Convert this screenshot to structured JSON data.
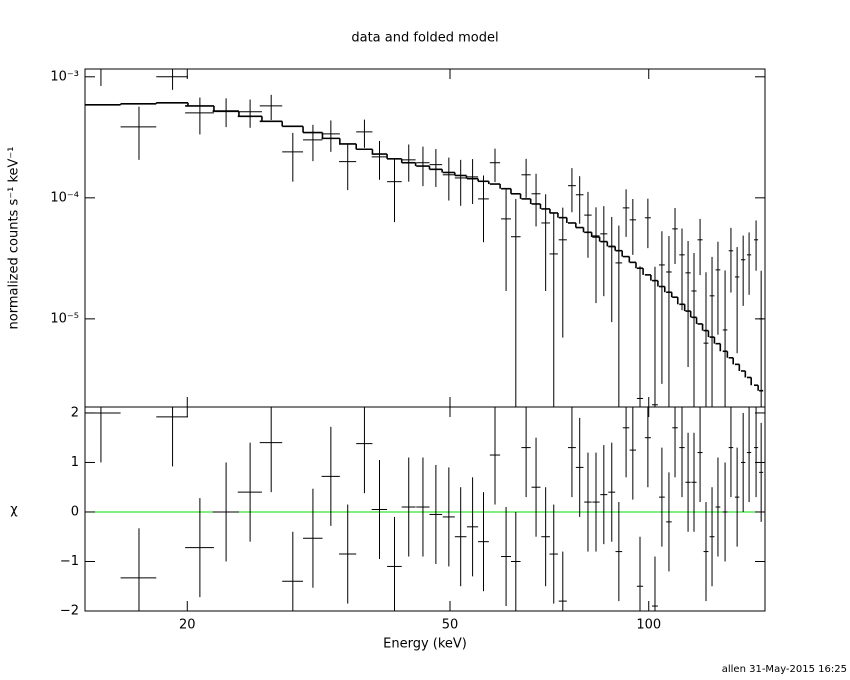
{
  "chart_data": {
    "type": "errorbar",
    "title": "data and folded model",
    "xlabel": "Energy (keV)",
    "footer": "allen 31-May-2015 16:25",
    "xlog": true,
    "xlim": [
      14,
      150
    ],
    "xticks": [
      20,
      50,
      100
    ],
    "x": [
      14.8,
      16.9,
      19.0,
      20.9,
      22.9,
      24.9,
      26.8,
      28.9,
      31.0,
      33.0,
      35.0,
      37.1,
      39.1,
      41.2,
      43.3,
      45.5,
      47.6,
      49.8,
      51.9,
      54.1,
      56.2,
      58.5,
      60.8,
      62.9,
      65.2,
      67.5,
      69.8,
      71.8,
      74.1,
      76.5,
      78.6,
      80.9,
      83.2,
      85.5,
      87.9,
      90.1,
      92.4,
      94.6,
      97.0,
      99.7,
      102.2,
      104.7,
      107.3,
      109.6,
      112.3,
      114.7,
      117.1,
      119.6,
      122.1,
      124.7,
      127.3,
      130.5,
      133.2,
      136.1,
      139.0,
      141.9,
      145.4,
      148.0
    ],
    "xerr": 1.05,
    "data_color": "#000000",
    "model_color": "#000000",
    "top": {
      "ylabel": "normalized counts s⁻¹ keV⁻¹",
      "ylog": true,
      "ylim": [
        1.87e-06,
        0.00116
      ],
      "yticks": [
        {
          "value": 0.001,
          "label": "10⁻³"
        },
        {
          "value": 0.0001,
          "label": "10⁻⁴"
        },
        {
          "value": 1e-05,
          "label": "10⁻⁵"
        }
      ],
      "values": [
        0.00116,
        0.000386,
        0.001,
        0.000504,
        0.000524,
        0.000514,
        0.000575,
        0.00024,
        0.000301,
        0.000338,
        0.000199,
        0.000351,
        0.000218,
        0.000136,
        0.000206,
        0.000195,
        0.000188,
        0.000155,
        0.000146,
        0.000149,
        9.8e-05,
        0.000195,
        6.7e-05,
        4.77e-05,
        0.000155,
        0.000108,
        6.2e-05,
        3.44e-05,
        4.5e-05,
        0.000126,
        0.000106,
        7.2e-05,
        4.85e-05,
        5.04e-05,
        3.94e-05,
        2.9e-05,
        8.26e-05,
        6.58e-05,
        2.2e-06,
        6.84e-05,
        1.95e-06,
        2.79e-05,
        2.44e-05,
        5.54e-05,
        3.38e-05,
        2.4e-05,
        1.7e-05,
        4.5e-05,
        6.3e-06,
        1.55e-05,
        2.54e-05,
        8.1e-06,
        3.65e-05,
        2.22e-05,
        3.08e-05,
        3.38e-05,
        4.5e-05,
        1e-05
      ],
      "errors": [
        0.00032,
        0.00018,
        0.00022,
        0.00017,
        0.00014,
        0.000135,
        0.000135,
        0.000104,
        0.0001,
        9.8e-05,
        8.3e-05,
        9.2e-05,
        7.7e-05,
        7.3e-05,
        7e-05,
        7e-05,
        6.5e-05,
        6e-05,
        6e-05,
        6e-05,
        5.5e-05,
        6e-05,
        5e-05,
        5e-05,
        5.5e-05,
        5e-05,
        4.5e-05,
        4e-05,
        3.8e-05,
        5e-05,
        4.5e-05,
        4e-05,
        3.5e-05,
        3.5e-05,
        3e-05,
        3e-05,
        3.5e-05,
        3.2e-05,
        2.5e-05,
        3e-05,
        2.5e-05,
        2.5e-05,
        2.4e-05,
        2.7e-05,
        2.2e-05,
        2e-05,
        1.8e-05,
        2.2e-05,
        1.8e-05,
        1.7e-05,
        1.8e-05,
        1.7e-05,
        2e-05,
        1.7e-05,
        1.8e-05,
        1.8e-05,
        2e-05,
        1.5e-05
      ],
      "model": [
        0.000587,
        0.000598,
        0.00061,
        0.000575,
        0.000518,
        0.000472,
        0.000429,
        0.00039,
        0.000346,
        0.00031,
        0.000279,
        0.000252,
        0.00023,
        0.00021,
        0.000195,
        0.000183,
        0.000172,
        0.000162,
        0.000153,
        0.000144,
        0.000137,
        0.00013,
        0.000119,
        0.000108,
        9.8e-05,
        8.9e-05,
        8.1e-05,
        7.5e-05,
        6.86e-05,
        6.2e-05,
        5.68e-05,
        5.19e-05,
        4.75e-05,
        4.35e-05,
        3.97e-05,
        3.66e-05,
        3.27e-05,
        2.93e-05,
        2.62e-05,
        2.31e-05,
        2.07e-05,
        1.85e-05,
        1.66e-05,
        1.51e-05,
        1.32e-05,
        1.16e-05,
        1.03e-05,
        9.08e-06,
        8e-06,
        7.07e-06,
        6.24e-06,
        5.4e-06,
        4.77e-06,
        4.21e-06,
        3.71e-06,
        3.28e-06,
        2.83e-06,
        2.55e-06
      ]
    },
    "bottom": {
      "ylabel": "χ",
      "ylim": [
        -2,
        2.12
      ],
      "yticks": [
        {
          "value": -2,
          "label": "−2"
        },
        {
          "value": -1,
          "label": "−1"
        },
        0,
        1,
        2
      ],
      "values": [
        2.0,
        -1.33,
        1.92,
        -0.72,
        0.0,
        0.4,
        1.4,
        -1.4,
        -0.53,
        0.72,
        -0.85,
        1.38,
        0.05,
        -1.1,
        0.1,
        0.1,
        -0.05,
        -0.1,
        -0.5,
        -0.3,
        -0.6,
        1.15,
        -0.9,
        -1.0,
        1.3,
        0.5,
        -0.5,
        -0.85,
        -1.8,
        1.3,
        0.9,
        0.2,
        0.2,
        0.35,
        0.4,
        -0.8,
        1.7,
        1.25,
        -1.5,
        1.5,
        -1.9,
        0.3,
        -0.2,
        1.7,
        1.3,
        0.6,
        0.6,
        1.2,
        -0.8,
        -0.5,
        0.1,
        0.0,
        1.3,
        0.3,
        1.0,
        1.2,
        1.3,
        0.8
      ],
      "errors": 1,
      "reference_line": 0,
      "reference_color": "#00dd00"
    }
  }
}
